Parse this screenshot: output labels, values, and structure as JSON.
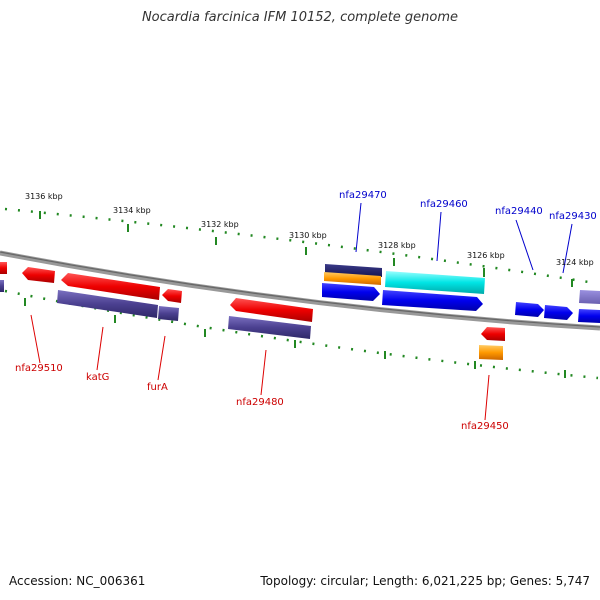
{
  "title": "Nocardia farcinica IFM 10152, complete genome",
  "footer": {
    "accession": "Accession: NC_006361",
    "info": "Topology: circular; Length: 6,021,225 bp; Genes: 5,747"
  },
  "ticks": [
    "3136 kbp",
    "3134 kbp",
    "3132 kbp",
    "3130 kbp",
    "3128 kbp",
    "3126 kbp",
    "3124 kbp"
  ],
  "genes_top": [
    "nfa29470",
    "nfa29460",
    "nfa29440",
    "nfa29430"
  ],
  "genes_bottom": [
    "nfa29510",
    "katG",
    "furA",
    "nfa29480",
    "nfa29450"
  ],
  "colors": {
    "forward_gene": "#0000ee",
    "reverse_gene": "#ee0000",
    "cds_dark": "#4b4090",
    "highlight": "#00e5e5",
    "rna_orange": "#ff9900",
    "backbone": "#777777",
    "tick": "#228822"
  }
}
